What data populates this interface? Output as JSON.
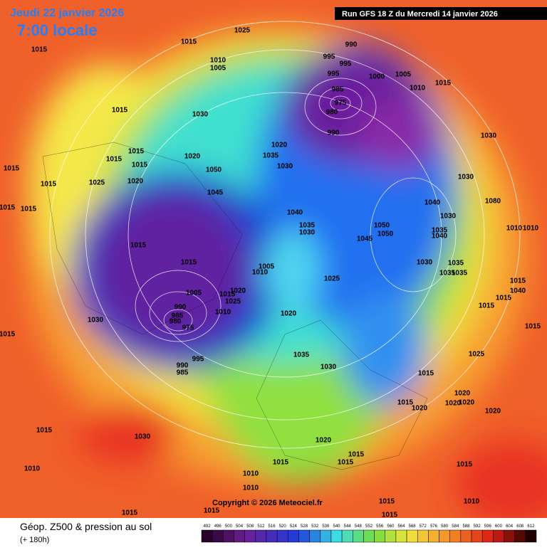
{
  "header": {
    "date": "Jeudi 22 janvier 2026",
    "time": "7:00 locale",
    "run": "Run GFS 18 Z du Mercredi 14 janvier 2026"
  },
  "copyright": "Copyright © 2026 Meteociel.fr",
  "footer": {
    "title": "Géop. Z500 & pression au sol",
    "lead": "(+ 180h)"
  },
  "scale": [
    492,
    496,
    500,
    504,
    508,
    512,
    516,
    520,
    524,
    528,
    532,
    536,
    540,
    544,
    548,
    552,
    556,
    560,
    564,
    568,
    572,
    576,
    580,
    584,
    588,
    592,
    596,
    600,
    604,
    608,
    612
  ],
  "isobar_labels": [
    1015,
    1025,
    1015,
    990,
    995,
    995,
    1010,
    1005,
    995,
    1000,
    1005,
    1010,
    1015,
    985,
    975,
    980,
    990,
    1015,
    1030,
    1030,
    1020,
    1015,
    1015,
    1020,
    1035,
    1015,
    1030,
    1015,
    1050,
    1020,
    1025,
    1015,
    1030,
    1045,
    1040,
    1015,
    1015,
    1040,
    1030,
    1080,
    1035,
    1050,
    1030,
    1050,
    1035,
    1040,
    1010,
    1010,
    1045,
    1015,
    1030,
    1035,
    1035,
    1015,
    1005,
    1010,
    1035,
    1025,
    1015,
    1005,
    1015,
    1020,
    1040,
    990,
    1025,
    1010,
    1015,
    1020,
    985,
    980,
    1030,
    1015,
    975,
    1015,
    1015,
    995,
    990,
    985,
    1035,
    1025,
    1030,
    1015,
    1020,
    1015,
    1020,
    1020,
    1020,
    1020,
    1015,
    1030,
    1020,
    1015,
    1015,
    1015,
    1015,
    1010,
    1010,
    1010,
    1015,
    1010,
    1015,
    1015,
    1015
  ]
}
